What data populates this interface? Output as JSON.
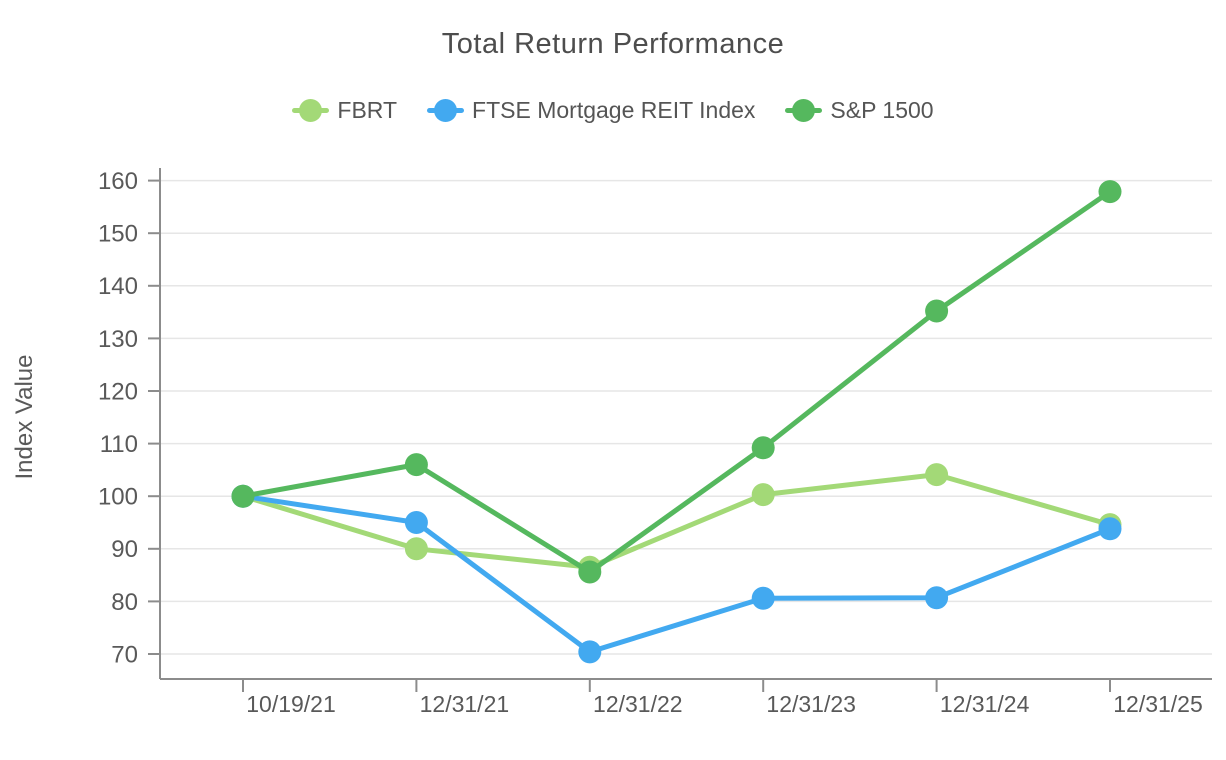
{
  "chart_data": {
    "type": "line",
    "title": "Total Return Performance",
    "xlabel": "",
    "ylabel": "Index Value",
    "x": [
      "10/19/21",
      "12/31/21",
      "12/31/22",
      "12/31/23",
      "12/31/24",
      "12/31/25"
    ],
    "y_ticks": [
      70,
      80,
      90,
      100,
      110,
      120,
      130,
      140,
      150,
      160
    ],
    "ylim": [
      65,
      164
    ],
    "grid": true,
    "legend_position": "top",
    "series": [
      {
        "name": "FBRT",
        "color": "#a3d977",
        "values": [
          100,
          90,
          86.5,
          100.3,
          104.1,
          94.6
        ]
      },
      {
        "name": "FTSE Mortgage REIT Index",
        "color": "#42a9f0",
        "values": [
          100,
          95,
          70.4,
          80.6,
          80.7,
          93.8
        ]
      },
      {
        "name": "S&P 1500",
        "color": "#55b85e",
        "values": [
          100,
          106,
          85.6,
          109.2,
          135.2,
          157.9
        ]
      }
    ],
    "colors": {
      "text": "#595959",
      "grid": "#e6e6e6",
      "axis": "#8c8c8c"
    }
  }
}
